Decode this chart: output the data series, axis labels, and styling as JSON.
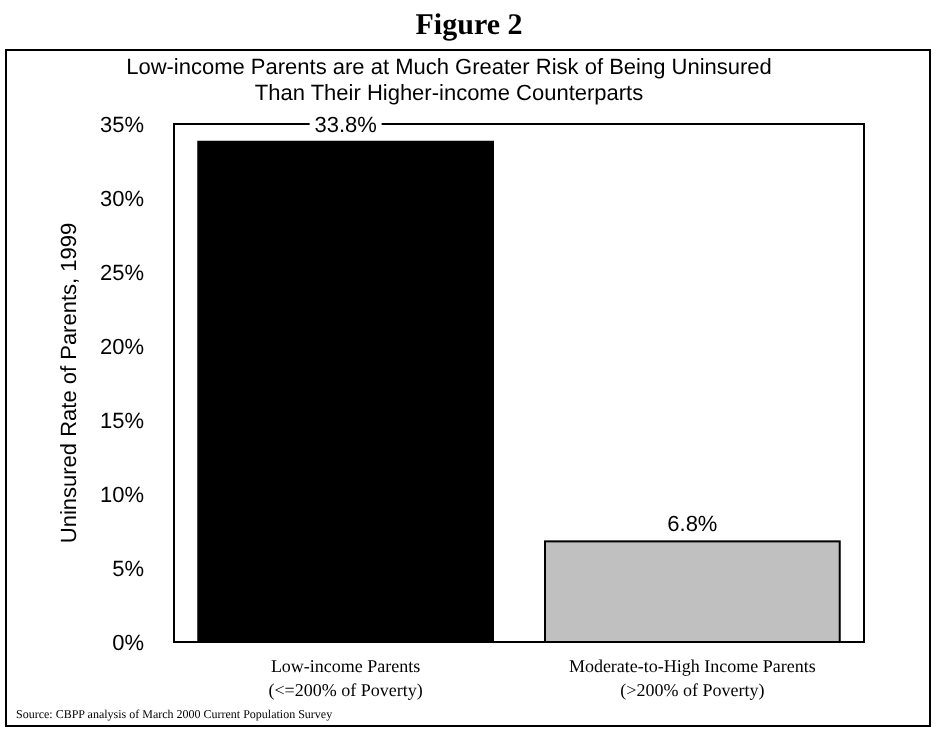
{
  "chart_data": {
    "type": "bar",
    "title": "Figure 2",
    "subtitle": "Low-income Parents are at Much Greater Risk of Being Uninsured\nThan Their Higher-income Counterparts",
    "ylabel": "Uninsured Rate of Parents, 1999",
    "categories": [
      "Low-income Parents\n(<=200% of Poverty)",
      "Moderate-to-High Income Parents\n(>200% of Poverty)"
    ],
    "values": [
      33.8,
      6.8
    ],
    "colors": [
      "#000000",
      "#c0c0c0"
    ],
    "value_labels": [
      "33.8%",
      "6.8%"
    ],
    "ylim": [
      0,
      35
    ],
    "yticks": [
      {
        "value": 0,
        "label": "0%"
      },
      {
        "value": 5,
        "label": "5%"
      },
      {
        "value": 10,
        "label": "10%"
      },
      {
        "value": 15,
        "label": "15%"
      },
      {
        "value": 20,
        "label": "20%"
      },
      {
        "value": 25,
        "label": "25%"
      },
      {
        "value": 30,
        "label": "30%"
      },
      {
        "value": 35,
        "label": "35%"
      }
    ],
    "grid": false,
    "annotations": [
      "Source:  CBPP analysis of March 2000 Current Population Survey"
    ]
  }
}
